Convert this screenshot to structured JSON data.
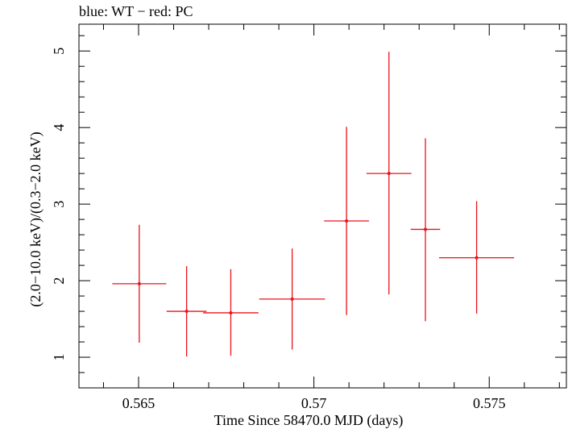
{
  "chart_data": {
    "type": "scatter",
    "title": "blue: WT − red: PC",
    "xlabel": "Time Since 58470.0 MJD (days)",
    "ylabel": "(2.0−10.0 keV)/(0.3−2.0 keV)",
    "xlim": [
      0.5633,
      0.5772
    ],
    "ylim": [
      0.6,
      5.35
    ],
    "x_ticks": [
      0.565,
      0.57,
      0.575
    ],
    "x_tick_labels": [
      "0.565",
      "0.57",
      "0.575"
    ],
    "y_ticks": [
      1,
      2,
      3,
      4,
      5
    ],
    "y_tick_labels": [
      "1",
      "2",
      "3",
      "4",
      "5"
    ],
    "grid": false,
    "series": [
      {
        "name": "PC",
        "color": "#e8141c",
        "points": [
          {
            "x": 0.56502,
            "xerr": 0.00077,
            "y": 1.96,
            "ylow": 1.19,
            "yhigh": 2.73
          },
          {
            "x": 0.56637,
            "xerr": 0.00057,
            "y": 1.6,
            "ylow": 1.01,
            "yhigh": 2.19
          },
          {
            "x": 0.56763,
            "xerr": 0.00079,
            "y": 1.58,
            "ylow": 1.02,
            "yhigh": 2.15
          },
          {
            "x": 0.56938,
            "xerr": 0.00094,
            "y": 1.76,
            "ylow": 1.1,
            "yhigh": 2.42
          },
          {
            "x": 0.57093,
            "xerr": 0.00064,
            "y": 2.78,
            "ylow": 1.55,
            "yhigh": 4.01
          },
          {
            "x": 0.57214,
            "xerr": 0.00064,
            "y": 3.4,
            "ylow": 1.82,
            "yhigh": 4.99
          },
          {
            "x": 0.57318,
            "xerr": 0.00042,
            "y": 2.67,
            "ylow": 1.47,
            "yhigh": 3.86
          },
          {
            "x": 0.57464,
            "xerr": 0.00107,
            "y": 2.3,
            "ylow": 1.57,
            "yhigh": 3.04
          }
        ]
      }
    ]
  }
}
